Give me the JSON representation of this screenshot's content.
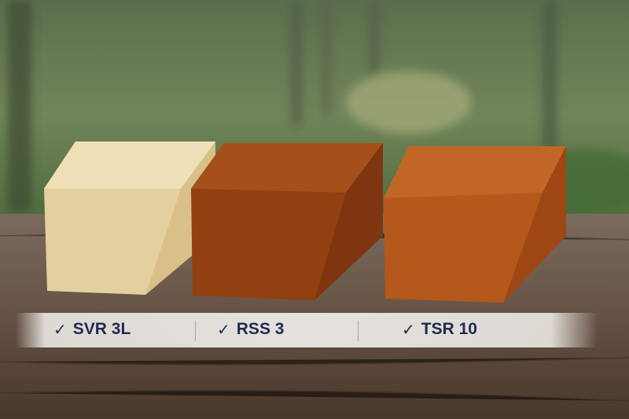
{
  "labels": [
    {
      "icon": "check-icon",
      "text": "SVR 3L"
    },
    {
      "icon": "check-icon",
      "text": "RSS 3"
    },
    {
      "icon": "check-icon",
      "text": "TSR 10"
    }
  ],
  "colors": {
    "label_text": "#1f2b4e",
    "pale_block": "#e8d3a2",
    "dark_block": "#9a4515",
    "amber_block": "#b85a1c"
  }
}
